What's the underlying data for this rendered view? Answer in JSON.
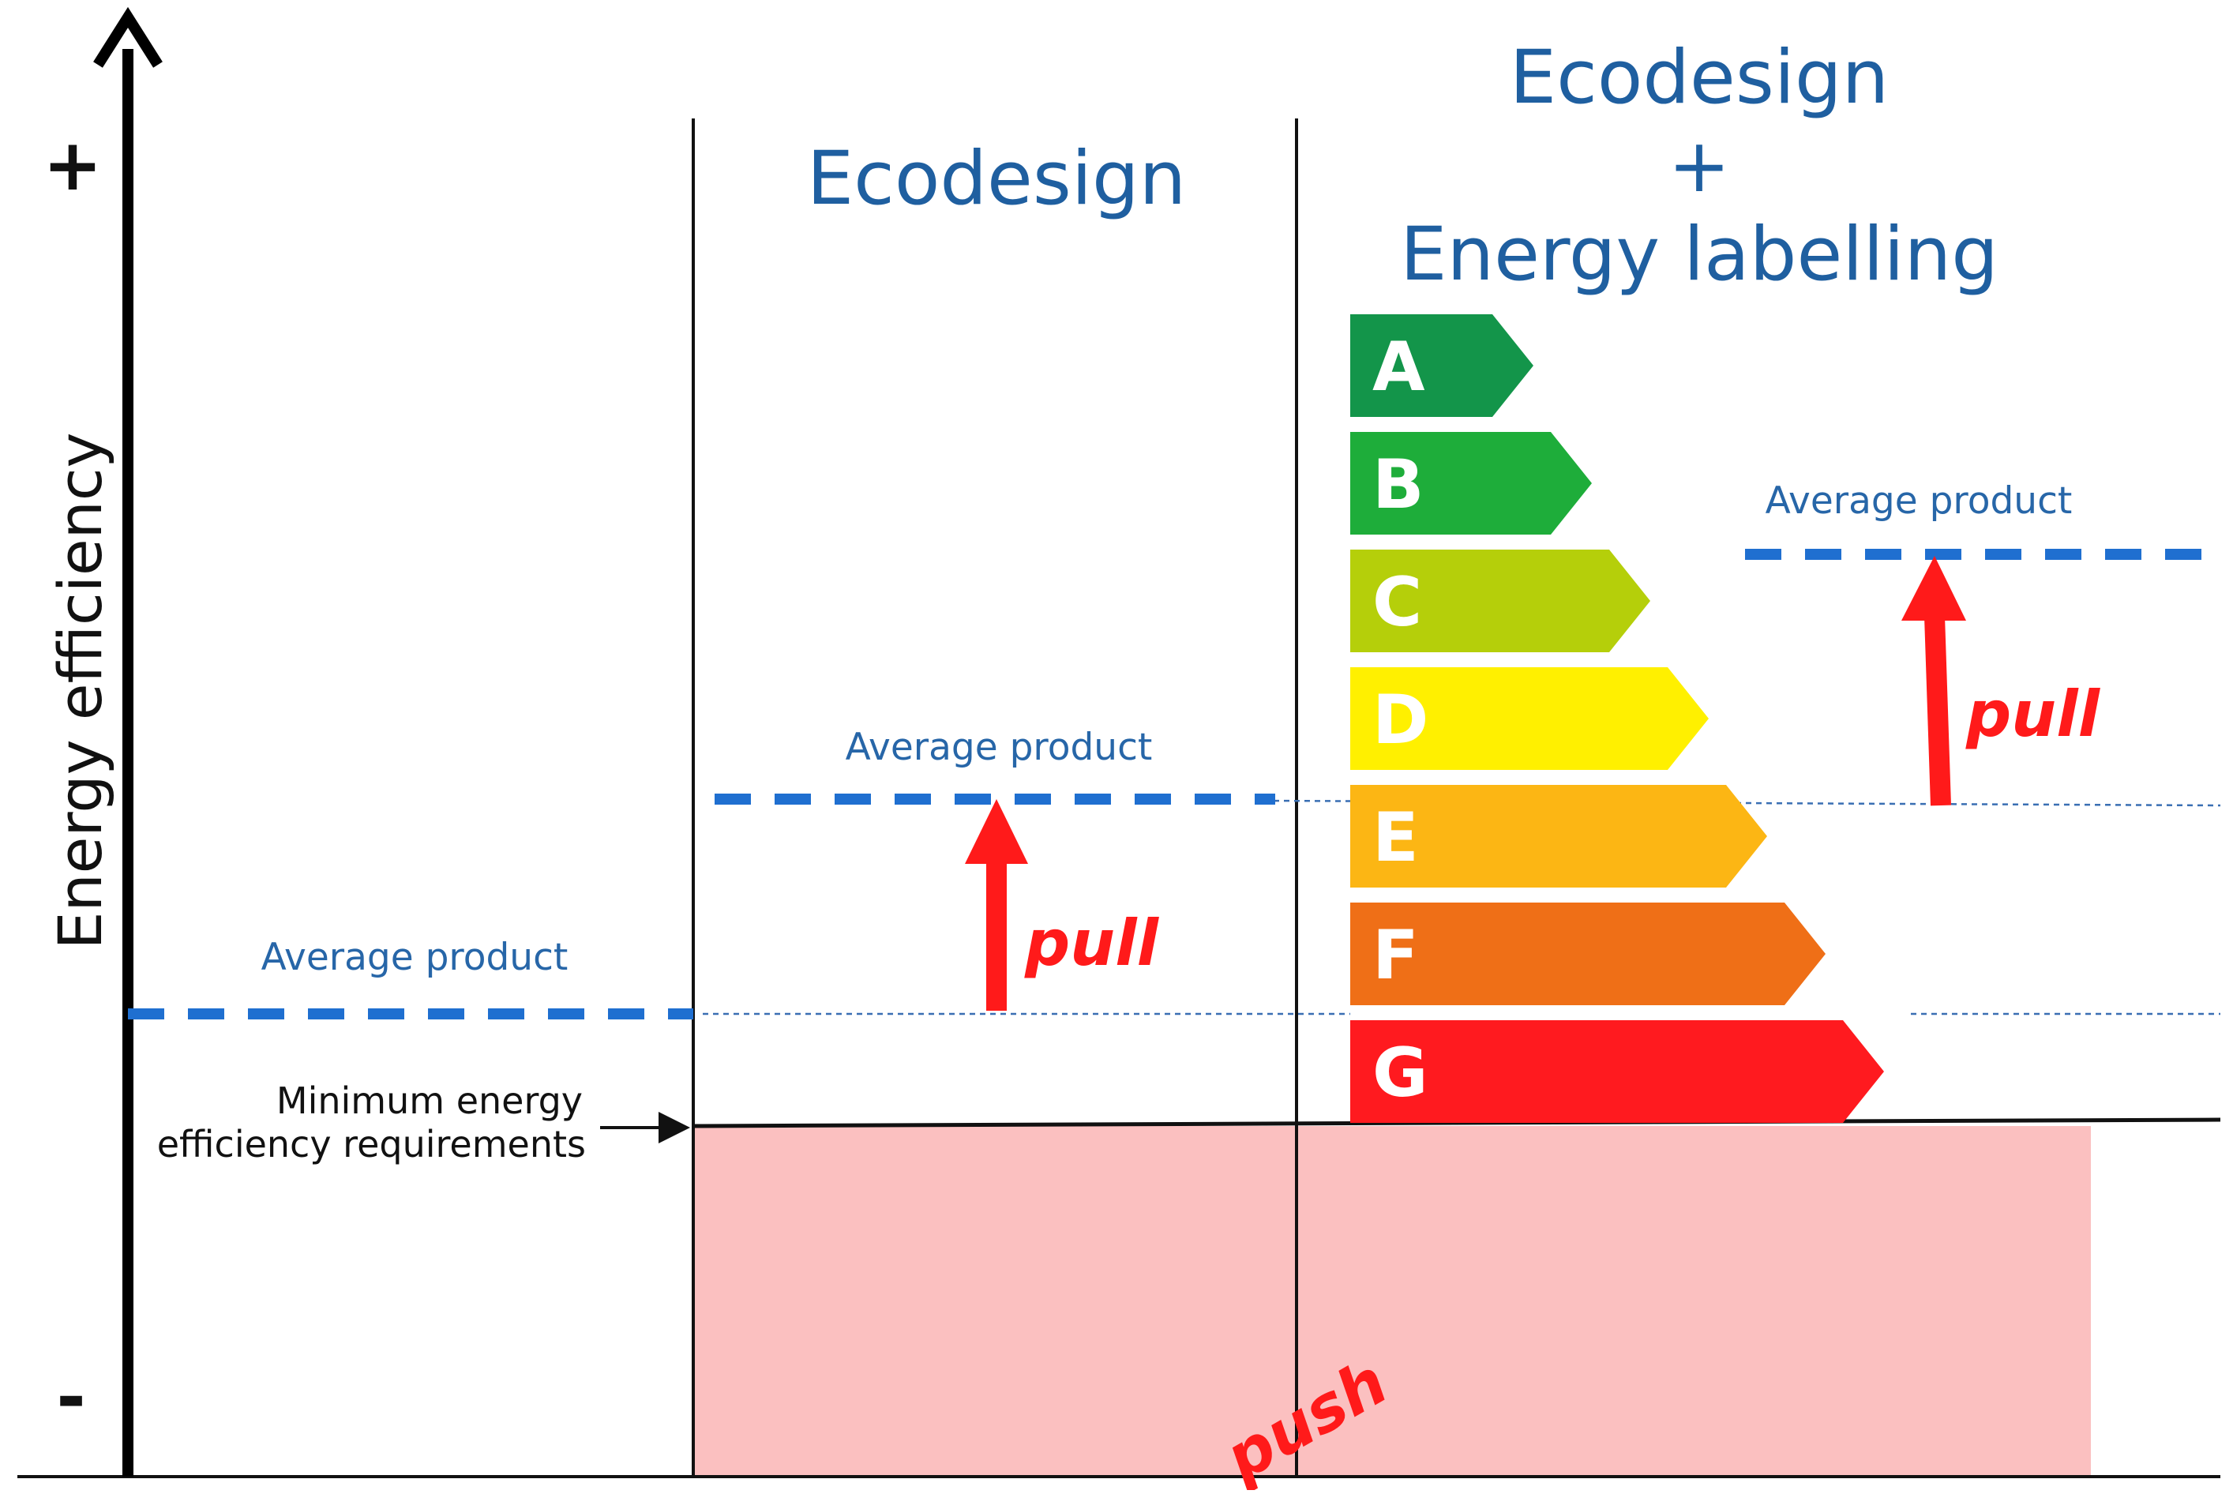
{
  "axis": {
    "label": "Energy efficiency",
    "plus": "+",
    "minus": "-"
  },
  "columns": {
    "ecodesign": {
      "title": "Ecodesign",
      "average_label": "Average product",
      "pull_label": "pull"
    },
    "ecodesign_labelling": {
      "title_line1": "Ecodesign",
      "title_line2": "+",
      "title_line3": "Energy labelling",
      "average_label": "Average product",
      "pull_label": "pull"
    }
  },
  "baseline": {
    "average_label": "Average product"
  },
  "minimum_requirements": {
    "line1": "Minimum energy",
    "line2": "efficiency requirements"
  },
  "push_label": "push",
  "energy_label": {
    "bands": [
      {
        "letter": "A",
        "color": "#13954a"
      },
      {
        "letter": "B",
        "color": "#1ead3a"
      },
      {
        "letter": "C",
        "color": "#b5cf0a"
      },
      {
        "letter": "D",
        "color": "#fff000"
      },
      {
        "letter": "E",
        "color": "#fcb614"
      },
      {
        "letter": "F",
        "color": "#ef6f17"
      },
      {
        "letter": "G",
        "color": "#ff1a1f"
      }
    ]
  },
  "colors": {
    "title_blue": "#1f5fa0",
    "dash_blue": "#1f6fd0",
    "arrow_red": "#ff1a1a",
    "push_area": "#fbc0c0"
  }
}
